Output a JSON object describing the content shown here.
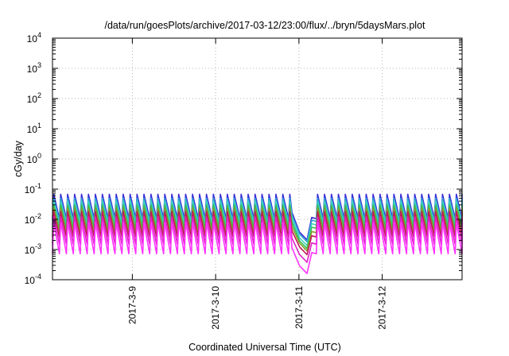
{
  "chart_data": {
    "type": "line",
    "title": "/data/run/goesPlots/archive/2017-03-12/23:00/flux/../bryn/5daysMars.plot",
    "xlabel": "Coordinated Universal Time (UTC)",
    "ylabel": "cGy/day",
    "y_scale": "log",
    "ylim": [
      0.0001,
      10000
    ],
    "y_ticks": [
      {
        "value": 0.0001,
        "mant": "10",
        "exp": "-4"
      },
      {
        "value": 0.001,
        "mant": "10",
        "exp": "-3"
      },
      {
        "value": 0.01,
        "mant": "10",
        "exp": "-2"
      },
      {
        "value": 0.1,
        "mant": "10",
        "exp": "-1"
      },
      {
        "value": 1,
        "mant": "10",
        "exp": "0"
      },
      {
        "value": 10,
        "mant": "10",
        "exp": "1"
      },
      {
        "value": 100,
        "mant": "10",
        "exp": "2"
      },
      {
        "value": 1000,
        "mant": "10",
        "exp": "3"
      },
      {
        "value": 10000,
        "mant": "10",
        "exp": "4"
      }
    ],
    "x_range_days": [
      "2017-03-08T01:00",
      "2017-03-12T23:00"
    ],
    "x_ticks": [
      "2017-3-9",
      "2017-3-10",
      "2017-3-11",
      "2017-3-12"
    ],
    "grid": true,
    "sawtooth_period_hours": 2,
    "dip": {
      "start": "2017-03-10T22:00",
      "end": "2017-03-11T04:00"
    },
    "series": [
      {
        "color": "#3b2bd6",
        "peak": 0.068,
        "trough": 0.0105,
        "dip_min": 0.0021
      },
      {
        "color": "#2fa5d8",
        "peak": 0.05,
        "trough": 0.0085,
        "dip_min": 0.0018
      },
      {
        "color": "#3fd2bc",
        "peak": 0.04,
        "trough": 0.0065,
        "dip_min": 0.00135
      },
      {
        "color": "#33c05a",
        "peak": 0.03,
        "trough": 0.005,
        "dip_min": 0.00108
      },
      {
        "color": "#8a9a2a",
        "peak": 0.024,
        "trough": 0.0036,
        "dip_min": 0.0009
      },
      {
        "color": "#c2185b",
        "peak": 0.018,
        "trough": 0.0026,
        "dip_min": 0.00068
      },
      {
        "color": "#e020c8",
        "peak": 0.012,
        "trough": 0.0015,
        "dip_min": 0.00038
      },
      {
        "color": "#ff33ff",
        "peak": 0.0078,
        "trough": 0.00072,
        "dip_min": 0.00016
      }
    ]
  }
}
